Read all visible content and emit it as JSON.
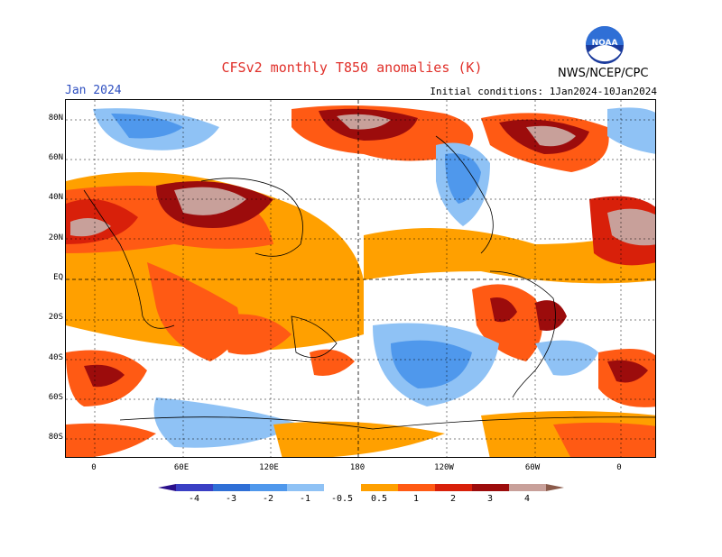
{
  "header": {
    "title": "CFSv2 monthly T850 anomalies (K)",
    "month": "Jan 2024",
    "initial_conditions": "Initial conditions: 1Jan2024-10Jan2024",
    "organization": "NWS/NCEP/CPC",
    "logo_text": "NOAA"
  },
  "map": {
    "lat_labels": [
      "80N",
      "60N",
      "40N",
      "20N",
      "EQ",
      "20S",
      "40S",
      "60S",
      "80S"
    ],
    "lon_labels": [
      "0",
      "60E",
      "120E",
      "180",
      "120W",
      "60W",
      "0"
    ]
  },
  "colorbar": {
    "labels": [
      "-4",
      "-3",
      "-2",
      "-1",
      "-0.5",
      "0.5",
      "1",
      "2",
      "3",
      "4"
    ],
    "colors": [
      "#2a0f8a",
      "#3a3fc4",
      "#2f6fd6",
      "#4f98ec",
      "#8fc2f5",
      "#ffffff",
      "#ffa000",
      "#ff5a14",
      "#d8200a",
      "#9c0c0c",
      "#c8a09a",
      "#8a5a4a"
    ]
  }
}
